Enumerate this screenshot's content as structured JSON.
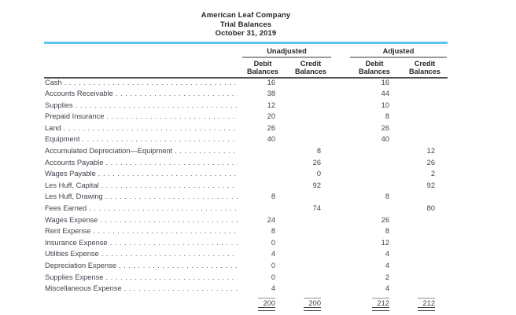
{
  "report": {
    "company": "American Leaf Company",
    "title": "Trial Balances",
    "date": "October 31, 2019"
  },
  "columns": {
    "group_unadjusted": "Unadjusted",
    "group_adjusted": "Adjusted",
    "debit_line1": "Debit",
    "credit_line1": "Credit",
    "balances_line2": "Balances"
  },
  "rows": [
    {
      "account": "Cash",
      "unadjusted_debit": "16",
      "unadjusted_credit": "",
      "adjusted_debit": "16",
      "adjusted_credit": ""
    },
    {
      "account": "Accounts Receivable",
      "unadjusted_debit": "38",
      "unadjusted_credit": "",
      "adjusted_debit": "44",
      "adjusted_credit": ""
    },
    {
      "account": "Supplies",
      "unadjusted_debit": "12",
      "unadjusted_credit": "",
      "adjusted_debit": "10",
      "adjusted_credit": ""
    },
    {
      "account": "Prepaid Insurance",
      "unadjusted_debit": "20",
      "unadjusted_credit": "",
      "adjusted_debit": "8",
      "adjusted_credit": ""
    },
    {
      "account": "Land",
      "unadjusted_debit": "26",
      "unadjusted_credit": "",
      "adjusted_debit": "26",
      "adjusted_credit": ""
    },
    {
      "account": "Equipment",
      "unadjusted_debit": "40",
      "unadjusted_credit": "",
      "adjusted_debit": "40",
      "adjusted_credit": ""
    },
    {
      "account": "Accumulated Depreciation—Equipment",
      "unadjusted_debit": "",
      "unadjusted_credit": "8",
      "adjusted_debit": "",
      "adjusted_credit": "12"
    },
    {
      "account": "Accounts Payable",
      "unadjusted_debit": "",
      "unadjusted_credit": "26",
      "adjusted_debit": "",
      "adjusted_credit": "26"
    },
    {
      "account": "Wages Payable",
      "unadjusted_debit": "",
      "unadjusted_credit": "0",
      "adjusted_debit": "",
      "adjusted_credit": "2"
    },
    {
      "account": "Les Huff, Capital",
      "unadjusted_debit": "",
      "unadjusted_credit": "92",
      "adjusted_debit": "",
      "adjusted_credit": "92"
    },
    {
      "account": "Les Huff, Drawing",
      "unadjusted_debit": "8",
      "unadjusted_credit": "",
      "adjusted_debit": "8",
      "adjusted_credit": ""
    },
    {
      "account": "Fees Earned",
      "unadjusted_debit": "",
      "unadjusted_credit": "74",
      "adjusted_debit": "",
      "adjusted_credit": "80"
    },
    {
      "account": "Wages Expense",
      "unadjusted_debit": "24",
      "unadjusted_credit": "",
      "adjusted_debit": "26",
      "adjusted_credit": ""
    },
    {
      "account": "Rent Expense",
      "unadjusted_debit": "8",
      "unadjusted_credit": "",
      "adjusted_debit": "8",
      "adjusted_credit": ""
    },
    {
      "account": "Insurance Expense",
      "unadjusted_debit": "0",
      "unadjusted_credit": "",
      "adjusted_debit": "12",
      "adjusted_credit": ""
    },
    {
      "account": "Utilities Expense",
      "unadjusted_debit": "4",
      "unadjusted_credit": "",
      "adjusted_debit": "4",
      "adjusted_credit": ""
    },
    {
      "account": "Depreciation Expense",
      "unadjusted_debit": "0",
      "unadjusted_credit": "",
      "adjusted_debit": "4",
      "adjusted_credit": ""
    },
    {
      "account": "Supplies Expense",
      "unadjusted_debit": "0",
      "unadjusted_credit": "",
      "adjusted_debit": "2",
      "adjusted_credit": ""
    },
    {
      "account": "Miscellaneous Expense",
      "unadjusted_debit": "4",
      "unadjusted_credit": "",
      "adjusted_debit": "4",
      "adjusted_credit": ""
    }
  ],
  "totals": {
    "unadjusted_debit": "200",
    "unadjusted_credit": "200",
    "adjusted_debit": "212",
    "adjusted_credit": "212"
  },
  "colors": {
    "accent_divider": "#5bc6ef",
    "body_text": "#3e434b",
    "heading_text": "#24272c",
    "group_underline": "#9b9b9b",
    "header_rule": "#515151",
    "total_rule_top": "#8f8f8f",
    "total_rule_double": "#3a3a3a"
  }
}
